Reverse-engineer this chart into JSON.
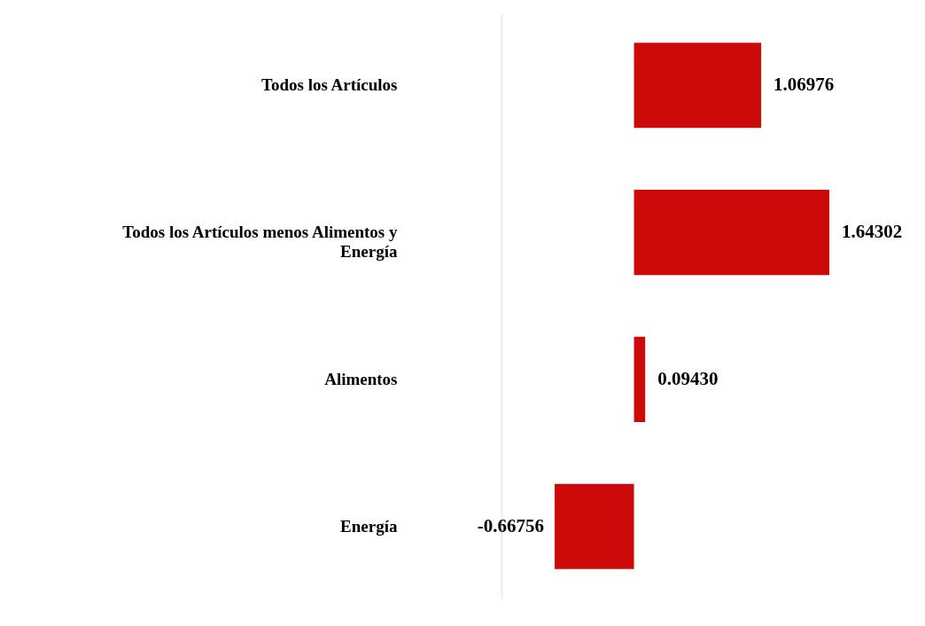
{
  "chart_data": {
    "type": "bar",
    "orientation": "horizontal",
    "categories": [
      "Todos los Artículos",
      "Todos los Artículos menos Alimentos y Energía",
      "Alimentos",
      "Energía"
    ],
    "values": [
      1.06976,
      1.64302,
      0.0943,
      -0.66756
    ],
    "value_labels": [
      "1.06976",
      "1.64302",
      "0.09430",
      "-0.66756"
    ],
    "color": "#cc0a0a"
  }
}
